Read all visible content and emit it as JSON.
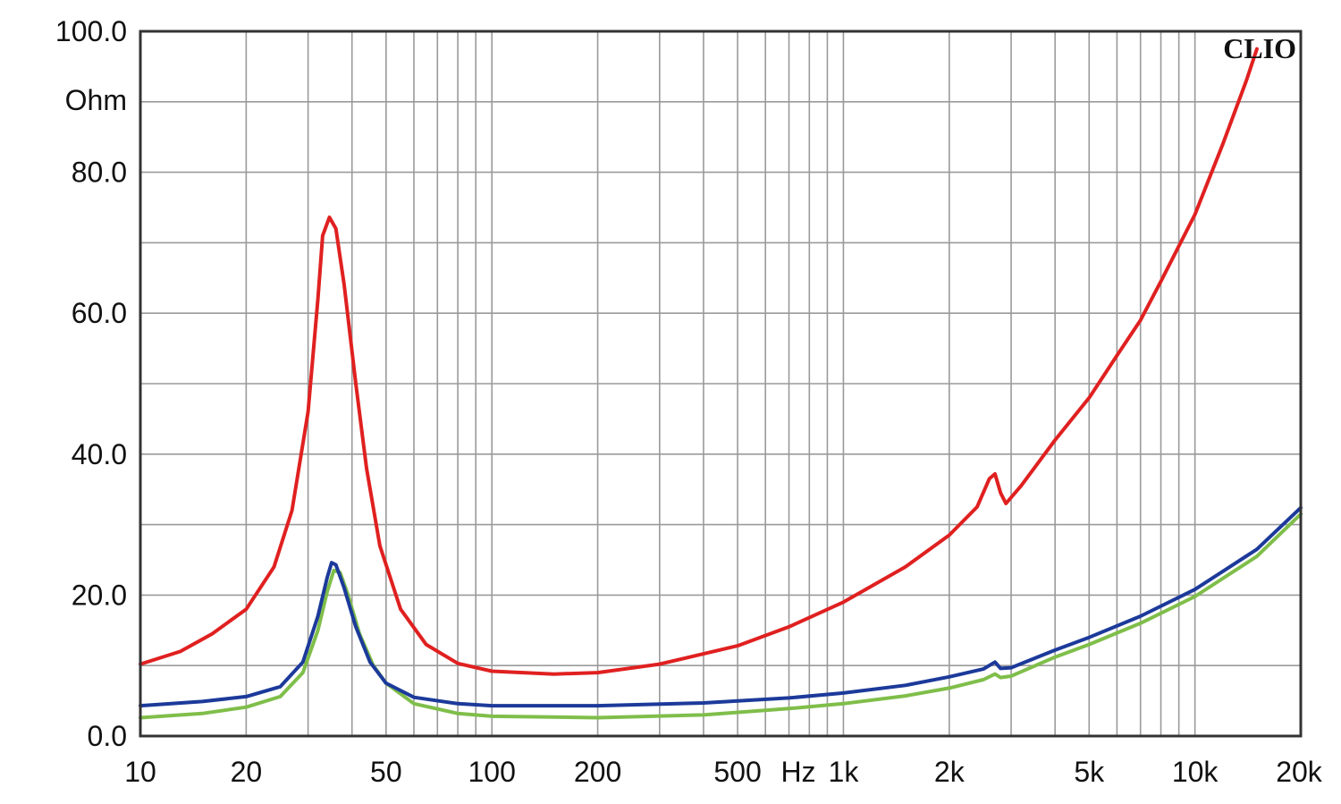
{
  "chart_data": {
    "type": "line",
    "brand": "CLIO",
    "xscale": "log",
    "xlim": [
      10,
      20000
    ],
    "ylim": [
      0,
      100
    ],
    "grid": true,
    "y_unit_label": "Ohm",
    "x_unit_label": "Hz",
    "y_ticks": [
      {
        "value": 0,
        "label": "0.0"
      },
      {
        "value": 20,
        "label": "20.0"
      },
      {
        "value": 40,
        "label": "40.0"
      },
      {
        "value": 60,
        "label": "60.0"
      },
      {
        "value": 80,
        "label": "80.0"
      },
      {
        "value": 100,
        "label": "100.0"
      }
    ],
    "x_ticks": [
      {
        "value": 10,
        "label": "10"
      },
      {
        "value": 20,
        "label": "20"
      },
      {
        "value": 50,
        "label": "50"
      },
      {
        "value": 100,
        "label": "100"
      },
      {
        "value": 200,
        "label": "200"
      },
      {
        "value": 500,
        "label": "500"
      },
      {
        "value": 1000,
        "label": "1k"
      },
      {
        "value": 2000,
        "label": "2k"
      },
      {
        "value": 5000,
        "label": "5k"
      },
      {
        "value": 10000,
        "label": "10k"
      },
      {
        "value": 20000,
        "label": "20k"
      }
    ],
    "series": [
      {
        "color": "#e02020",
        "points": [
          [
            10,
            10.2
          ],
          [
            13,
            12
          ],
          [
            16,
            14.5
          ],
          [
            20,
            18
          ],
          [
            24,
            24
          ],
          [
            27,
            32
          ],
          [
            30,
            46
          ],
          [
            32,
            62
          ],
          [
            33,
            71
          ],
          [
            34.5,
            73.6
          ],
          [
            36,
            72
          ],
          [
            38,
            64
          ],
          [
            41,
            50
          ],
          [
            44,
            38
          ],
          [
            48,
            27
          ],
          [
            55,
            18
          ],
          [
            65,
            13
          ],
          [
            80,
            10.3
          ],
          [
            100,
            9.2
          ],
          [
            150,
            8.8
          ],
          [
            200,
            9.0
          ],
          [
            300,
            10.2
          ],
          [
            500,
            12.8
          ],
          [
            700,
            15.5
          ],
          [
            1000,
            19
          ],
          [
            1500,
            24
          ],
          [
            2000,
            28.5
          ],
          [
            2400,
            32.5
          ],
          [
            2600,
            36.5
          ],
          [
            2700,
            37.2
          ],
          [
            2800,
            34.5
          ],
          [
            2900,
            33
          ],
          [
            3200,
            35.5
          ],
          [
            4000,
            42
          ],
          [
            5000,
            48
          ],
          [
            6000,
            54
          ],
          [
            7000,
            59
          ],
          [
            8000,
            64.5
          ],
          [
            10000,
            74
          ],
          [
            12000,
            84
          ],
          [
            14000,
            93
          ],
          [
            15000,
            97.5
          ]
        ]
      },
      {
        "color": "#1c3a9a",
        "points": [
          [
            10,
            4.3
          ],
          [
            15,
            4.9
          ],
          [
            20,
            5.6
          ],
          [
            25,
            7
          ],
          [
            29,
            10.5
          ],
          [
            32,
            17
          ],
          [
            34,
            22.5
          ],
          [
            35,
            24.6
          ],
          [
            36,
            24.3
          ],
          [
            38,
            21
          ],
          [
            41,
            15.5
          ],
          [
            45,
            10.5
          ],
          [
            50,
            7.5
          ],
          [
            60,
            5.5
          ],
          [
            80,
            4.6
          ],
          [
            100,
            4.3
          ],
          [
            200,
            4.3
          ],
          [
            400,
            4.7
          ],
          [
            700,
            5.4
          ],
          [
            1000,
            6.1
          ],
          [
            1500,
            7.2
          ],
          [
            2000,
            8.4
          ],
          [
            2500,
            9.5
          ],
          [
            2700,
            10.5
          ],
          [
            2800,
            9.6
          ],
          [
            3000,
            9.7
          ],
          [
            4000,
            12.2
          ],
          [
            5000,
            14
          ],
          [
            7000,
            17
          ],
          [
            10000,
            20.8
          ],
          [
            15000,
            26.5
          ],
          [
            20000,
            32.4
          ]
        ]
      },
      {
        "color": "#7fbe4a",
        "points": [
          [
            10,
            2.6
          ],
          [
            15,
            3.2
          ],
          [
            20,
            4.1
          ],
          [
            25,
            5.6
          ],
          [
            29,
            9
          ],
          [
            32,
            15
          ],
          [
            34,
            20.5
          ],
          [
            35.5,
            23.5
          ],
          [
            37,
            23.2
          ],
          [
            39,
            20
          ],
          [
            42,
            14.5
          ],
          [
            46,
            10
          ],
          [
            50,
            7.5
          ],
          [
            60,
            4.6
          ],
          [
            80,
            3.2
          ],
          [
            100,
            2.8
          ],
          [
            200,
            2.6
          ],
          [
            400,
            3
          ],
          [
            700,
            3.9
          ],
          [
            1000,
            4.6
          ],
          [
            1500,
            5.7
          ],
          [
            2000,
            6.8
          ],
          [
            2500,
            8
          ],
          [
            2700,
            8.8
          ],
          [
            2800,
            8.3
          ],
          [
            3000,
            8.5
          ],
          [
            4000,
            11.2
          ],
          [
            5000,
            13
          ],
          [
            7000,
            16
          ],
          [
            10000,
            19.8
          ],
          [
            15000,
            25.5
          ],
          [
            20000,
            31.5
          ]
        ]
      }
    ]
  }
}
